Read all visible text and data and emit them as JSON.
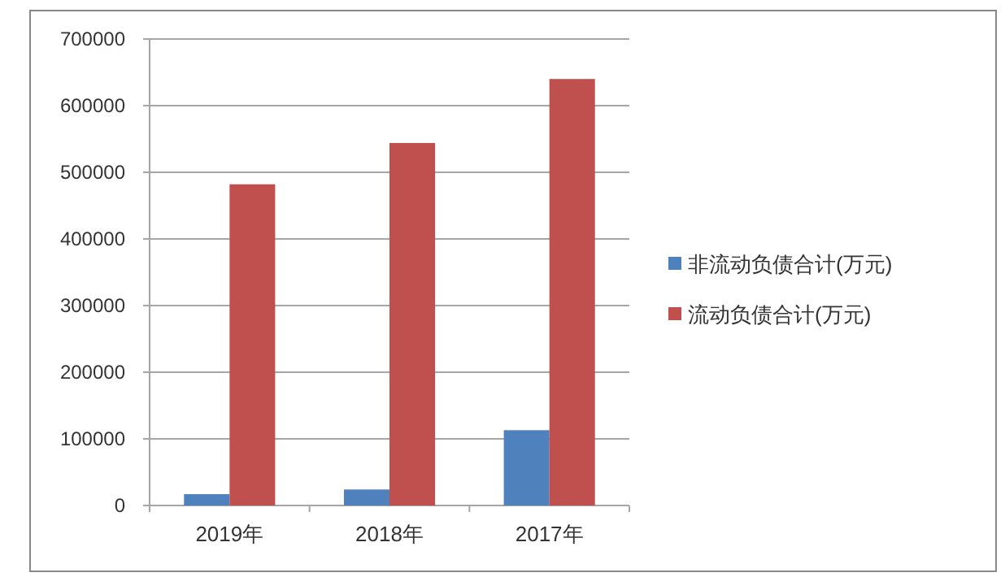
{
  "chart_data": {
    "type": "bar",
    "categories": [
      "2019年",
      "2018年",
      "2017年"
    ],
    "series": [
      {
        "name": "非流动负债合计(万元)",
        "color": "#4f81bd",
        "values": [
          17000,
          24000,
          113000
        ]
      },
      {
        "name": "流动负债合计(万元)",
        "color": "#c0504d",
        "values": [
          482000,
          544000,
          640000
        ]
      }
    ],
    "ylim": [
      0,
      700000
    ],
    "yticks": [
      0,
      100000,
      200000,
      300000,
      400000,
      500000,
      600000,
      700000
    ],
    "grid": "y",
    "legend": "right"
  }
}
